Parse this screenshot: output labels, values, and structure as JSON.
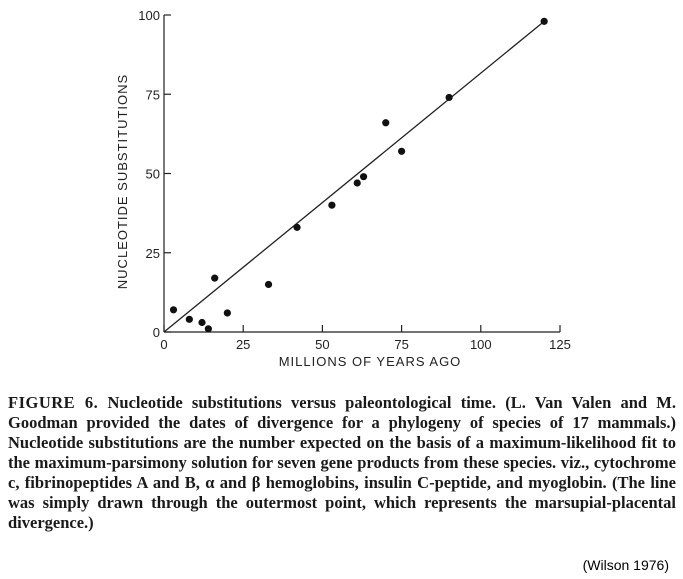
{
  "chart_data": {
    "type": "scatter",
    "title": "",
    "xlabel": "MILLIONS OF YEARS AGO",
    "ylabel": "NUCLEOTIDE SUBSTITUTIONS",
    "xlim": [
      0,
      125
    ],
    "ylim": [
      0,
      100
    ],
    "xticks": [
      0,
      25,
      50,
      75,
      100,
      125
    ],
    "yticks": [
      0,
      25,
      50,
      75,
      100
    ],
    "grid": false,
    "points": [
      {
        "x": 3,
        "y": 7
      },
      {
        "x": 8,
        "y": 4
      },
      {
        "x": 12,
        "y": 3
      },
      {
        "x": 14,
        "y": 1
      },
      {
        "x": 16,
        "y": 17
      },
      {
        "x": 20,
        "y": 6
      },
      {
        "x": 33,
        "y": 15
      },
      {
        "x": 42,
        "y": 33
      },
      {
        "x": 53,
        "y": 40
      },
      {
        "x": 61,
        "y": 47
      },
      {
        "x": 63,
        "y": 49
      },
      {
        "x": 70,
        "y": 66
      },
      {
        "x": 75,
        "y": 57
      },
      {
        "x": 90,
        "y": 74
      },
      {
        "x": 120,
        "y": 98
      }
    ],
    "line": {
      "x": [
        0,
        120
      ],
      "y": [
        0,
        98
      ]
    }
  },
  "caption": {
    "label": "FIGURE 6.",
    "text": "Nucleotide substitutions versus paleontological time. (L. Van Valen and M. Goodman provided the dates of divergence for a phylogeny of species of 17 mammals.) Nucleotide substitutions are the number expected on the basis of a maximum-likelihood fit to the maximum-parsimony solution for seven gene products from these species. viz., cytochrome c, fibrinopeptides A and B, α and β hemoglobins, insulin C-peptide, and myoglobin. (The line was simply drawn through the outermost point, which represents the marsupial-placental divergence.)"
  },
  "credit": "(Wilson 1976)"
}
